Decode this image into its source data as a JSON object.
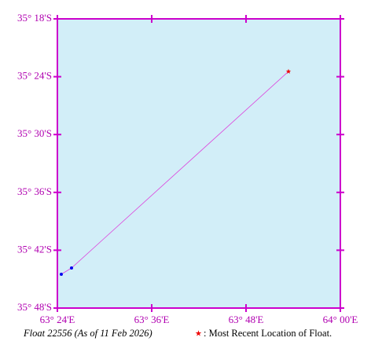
{
  "chart_data": {
    "type": "track",
    "x": [
      63.4083,
      63.43,
      63.89
    ],
    "y": [
      -35.7416,
      -35.7307,
      -35.391
    ],
    "xlim": [
      63.4,
      64.0
    ],
    "ylim": [
      -35.8,
      -35.3
    ],
    "xticks": [
      {
        "value": 63.4,
        "label": "63° 24'E"
      },
      {
        "value": 63.6,
        "label": "63° 36'E"
      },
      {
        "value": 63.8,
        "label": "63° 48'E"
      },
      {
        "value": 64.0,
        "label": "64° 00'E"
      }
    ],
    "yticks": [
      {
        "value": -35.3,
        "label": "35° 18'S"
      },
      {
        "value": -35.4,
        "label": "35° 24'S"
      },
      {
        "value": -35.5,
        "label": "35° 30'S"
      },
      {
        "value": -35.6,
        "label": "35° 36'S"
      },
      {
        "value": -35.7,
        "label": "35° 42'S"
      },
      {
        "value": -35.8,
        "label": "35° 48'S"
      }
    ],
    "caption": "Float 22556 (As of 11 Feb 2026)",
    "legend": ": Most Recent Location of Float.",
    "line_color": "#dd44dd",
    "point_color": "#0000ee",
    "latest_color": "#ee0000"
  }
}
